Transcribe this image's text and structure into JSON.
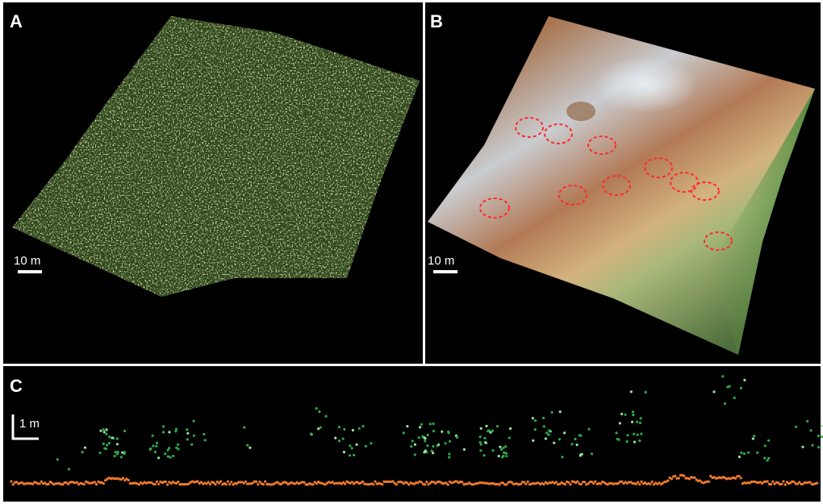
{
  "panels": [
    {
      "label": "A",
      "scale_bar": "10 m"
    },
    {
      "label": "B",
      "scale_bar": "10 m"
    },
    {
      "label": "C",
      "scale_bar": "1 m"
    }
  ]
}
